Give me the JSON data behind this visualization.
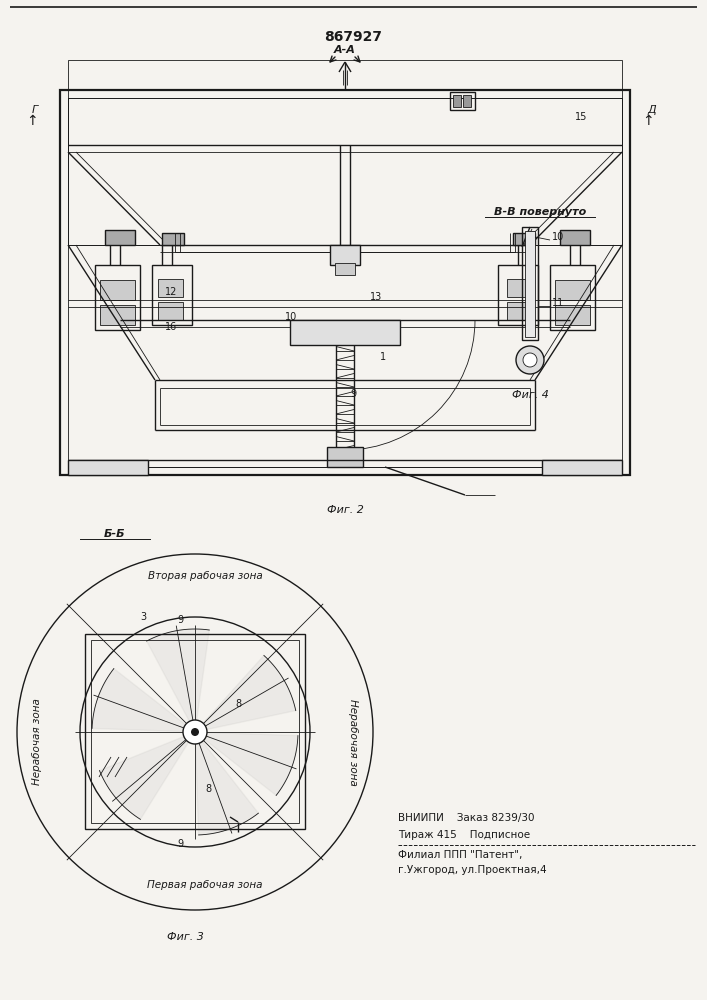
{
  "patent_number": "867927",
  "fig2_label": "А-А",
  "fig2_caption": "Фиг. 2",
  "fig3_caption": "Фиг. 3",
  "fig4_caption": "Фиг. 4",
  "fig3_label": "Б-Б",
  "fig4_label": "В-В повернуто",
  "fig3_zone_top": "Вторая рабочая зона",
  "fig3_zone_bottom": "Первая рабочая зона",
  "fig3_zone_left": "Нерабочая зона",
  "fig3_zone_right": "Нерабочая зона",
  "footer_line1": "ВНИИПИ    Заказ 8239/30",
  "footer_line2": "Тираж 415    Подписное",
  "footer_line3": "Филиал ППП \"Патент\",",
  "footer_line4": "г.Ужгород, ул.Проектная,4",
  "bg_color": "#f5f3ef",
  "line_color": "#1a1a1a",
  "label_fontsize": 7,
  "caption_fontsize": 8
}
